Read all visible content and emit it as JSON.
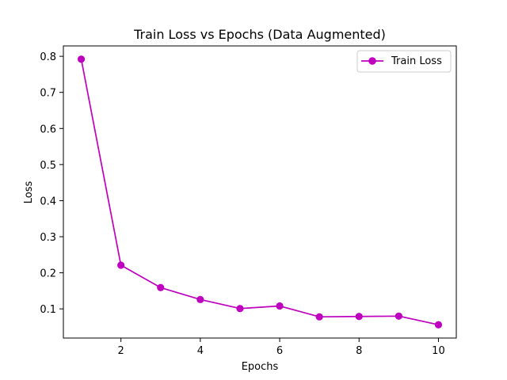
{
  "chart_data": {
    "type": "line",
    "title": "Train Loss vs Epochs (Data Augmented)",
    "xlabel": "Epochs",
    "ylabel": "Loss",
    "x": [
      1,
      2,
      3,
      4,
      5,
      6,
      7,
      8,
      9,
      10
    ],
    "series": [
      {
        "name": "Train Loss",
        "color": "#bf00bf",
        "marker": "circle",
        "values": [
          0.792,
          0.221,
          0.159,
          0.126,
          0.101,
          0.108,
          0.078,
          0.079,
          0.08,
          0.056
        ]
      }
    ],
    "xticks": [
      2,
      4,
      6,
      8,
      10
    ],
    "yticks": [
      0.1,
      0.2,
      0.3,
      0.4,
      0.5,
      0.6,
      0.7,
      0.8
    ],
    "xlim": [
      0.55,
      10.45
    ],
    "ylim": [
      0.0192,
      0.8288
    ],
    "grid": false,
    "legend_position": "top-right"
  }
}
